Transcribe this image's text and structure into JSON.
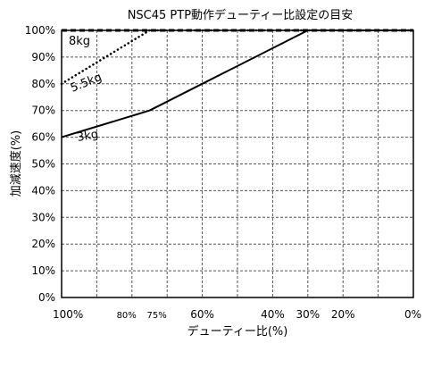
{
  "chart_data": {
    "type": "line",
    "title": "NSC45 PTP動作デューティー比設定の目安",
    "xlabel": "デューティー比(%)",
    "ylabel": "加減速度(%)",
    "x_tick_labels": [
      "100%",
      "80%",
      "75%",
      "60%",
      "40%",
      "30%",
      "20%",
      "0%"
    ],
    "x_tick_values": [
      100,
      80,
      75,
      60,
      40,
      30,
      20,
      0
    ],
    "xlim": [
      100,
      0
    ],
    "y_tick_labels": [
      "0%",
      "10%",
      "20%",
      "30%",
      "40%",
      "50%",
      "60%",
      "70%",
      "80%",
      "90%",
      "100%"
    ],
    "ylim": [
      0,
      100
    ],
    "grid": true,
    "series": [
      {
        "name": "3kg",
        "line_style": "solid",
        "x": [
          100,
          75,
          30,
          0
        ],
        "y": [
          60,
          70,
          100,
          100
        ]
      },
      {
        "name": "5.5kg",
        "line_style": "dotted",
        "x": [
          100,
          75,
          0
        ],
        "y": [
          80,
          100,
          100
        ]
      },
      {
        "name": "8kg",
        "line_style": "dashed",
        "x": [
          100,
          0
        ],
        "y": [
          100,
          100
        ]
      }
    ],
    "annotations": [
      {
        "text": "8kg",
        "series": "8kg"
      },
      {
        "text": "5.5kg",
        "series": "5.5kg"
      },
      {
        "text": "3kg",
        "series": "3kg"
      }
    ]
  }
}
